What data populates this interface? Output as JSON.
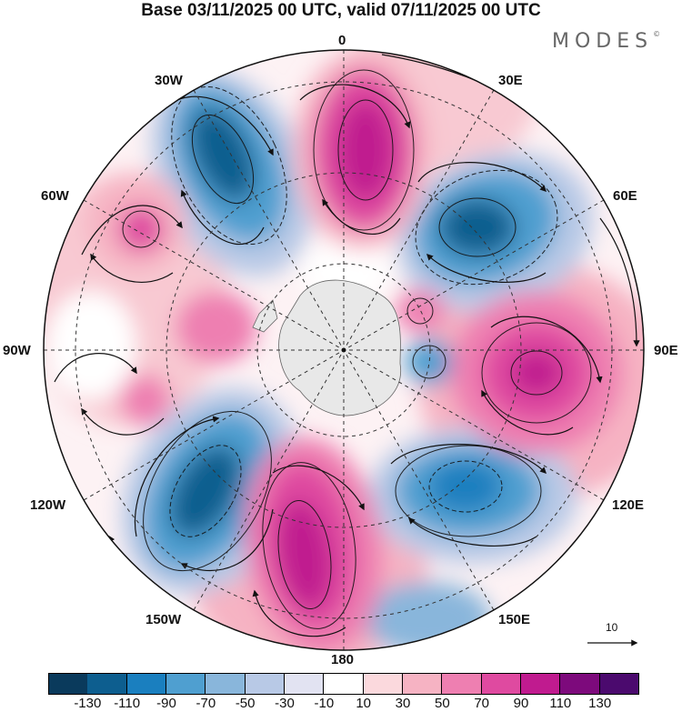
{
  "title": "Base 03/11/2025 00 UTC, valid 07/11/2025 00 UTC",
  "brand": "MODES",
  "brand_mark": "©",
  "map": {
    "projection": "south-polar-stereographic",
    "longitude_labels": {
      "top": "0",
      "top_right": "30E",
      "right_upper": "60E",
      "right": "90E",
      "right_lower": "120E",
      "bottom_right": "150E",
      "bottom": "180",
      "bottom_left": "150W",
      "left_lower": "120W",
      "left": "90W",
      "left_upper": "60W",
      "top_left": "30W"
    },
    "reference_vector_label": "10",
    "anomaly_centers": [
      {
        "sign": "negative",
        "lon_label": "30W",
        "value": -110
      },
      {
        "sign": "positive",
        "lon_label": "0",
        "value": 110
      },
      {
        "sign": "negative",
        "lon_label": "60E",
        "value": -110
      },
      {
        "sign": "positive",
        "lon_label": "90E",
        "value": 110
      },
      {
        "sign": "negative",
        "lon_label": "120E",
        "value": -90
      },
      {
        "sign": "positive",
        "lon_label": "180",
        "value": 110
      },
      {
        "sign": "negative",
        "lon_label": "120W",
        "value": -110
      },
      {
        "sign": "positive",
        "lon_label": "60W",
        "value": 70
      }
    ]
  },
  "colorbar": {
    "ticks": [
      "-130",
      "-110",
      "-90",
      "-70",
      "-50",
      "-30",
      "-10",
      "10",
      "30",
      "50",
      "70",
      "90",
      "110",
      "130"
    ],
    "colors": [
      "#0a3a5c",
      "#0d5e8f",
      "#1a7fbf",
      "#4f9fd0",
      "#89b6db",
      "#b8c9e6",
      "#e2e3f2",
      "#ffffff",
      "#fbd9dd",
      "#f6b3c3",
      "#ee7fb1",
      "#df4aa0",
      "#c01b8f",
      "#7d0a7c",
      "#4b0a6e"
    ]
  }
}
